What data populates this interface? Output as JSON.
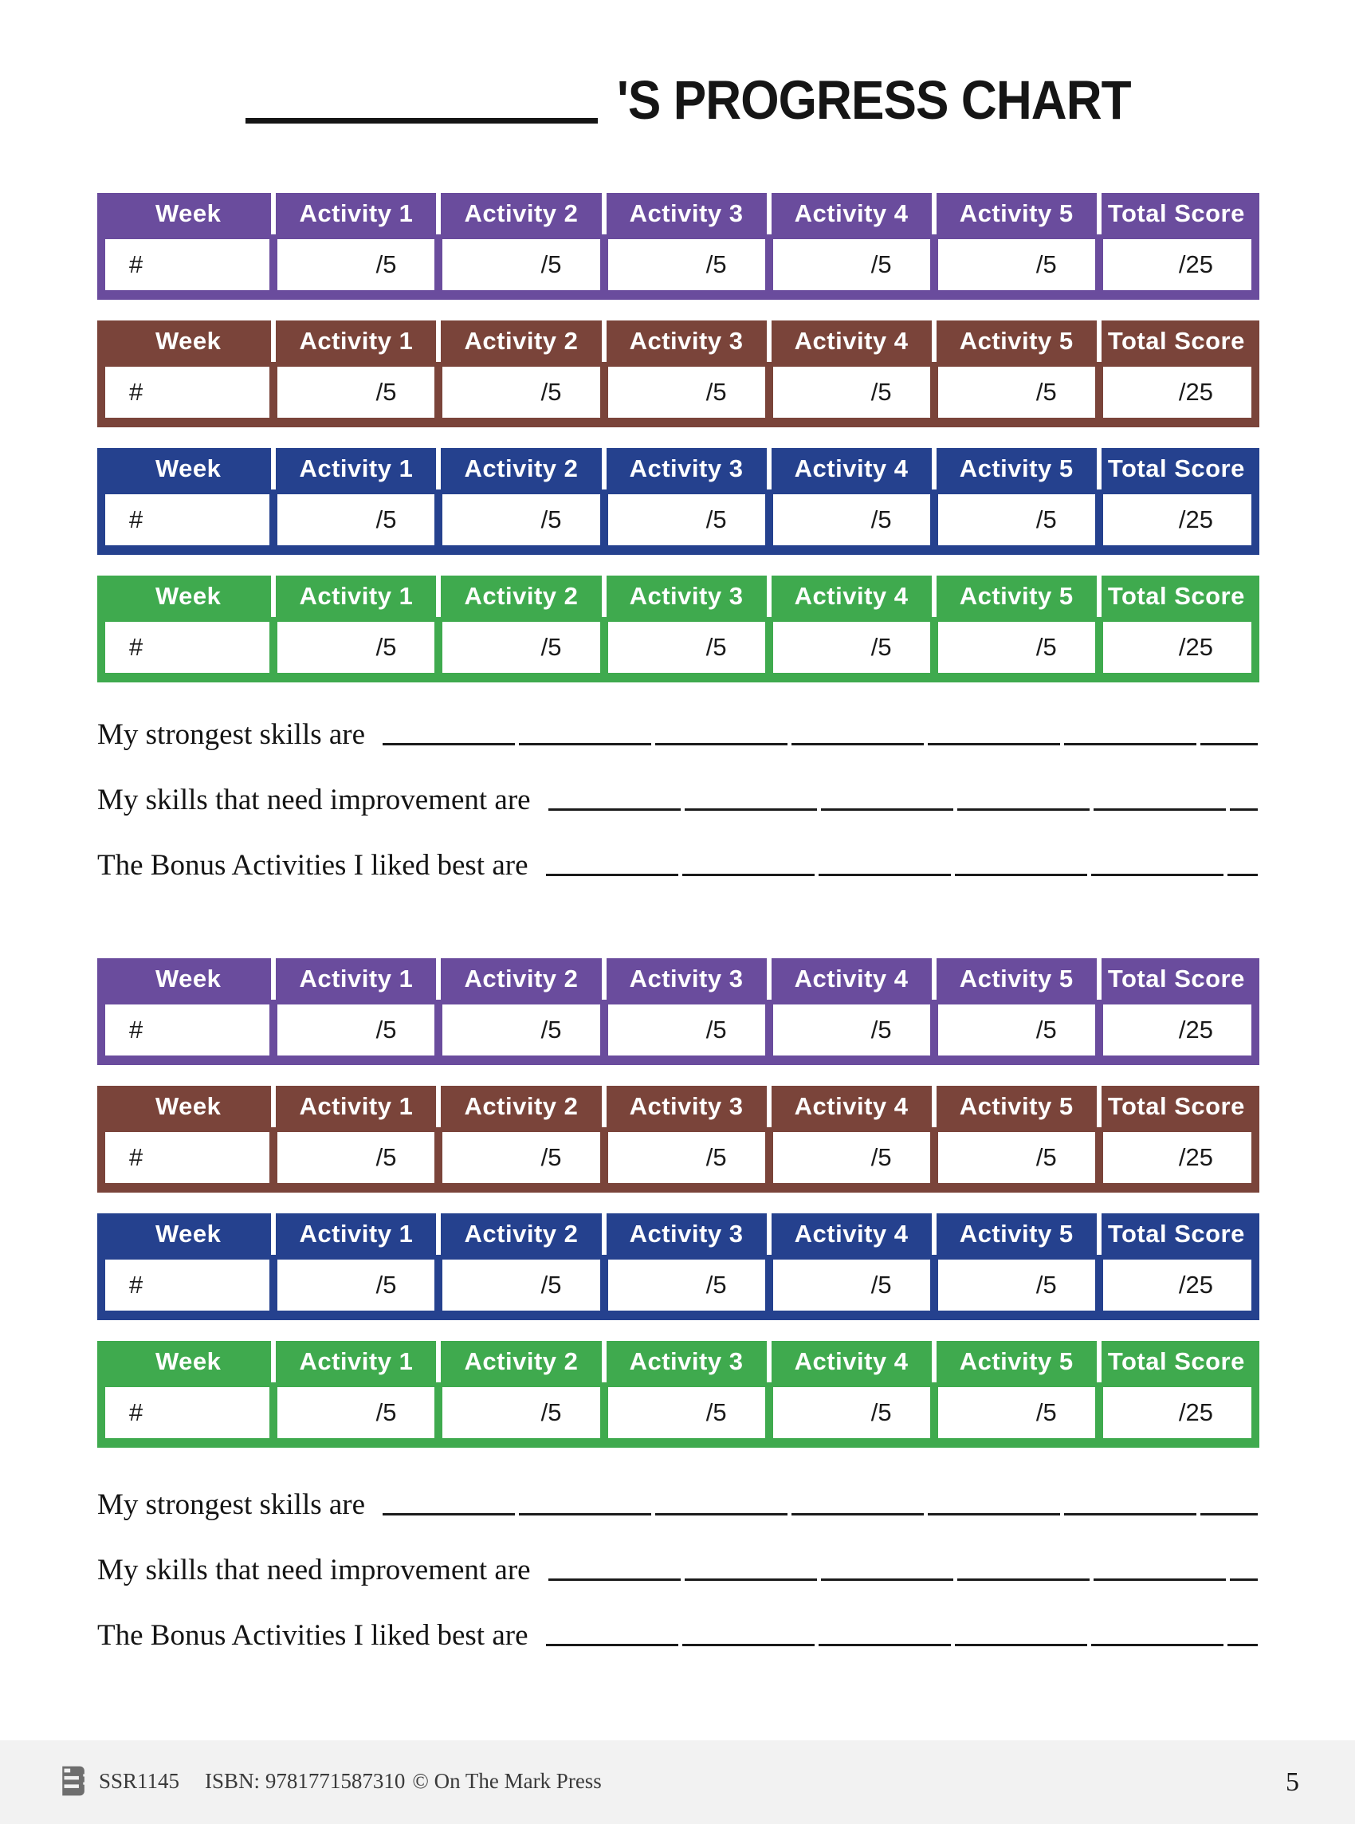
{
  "title": {
    "suffix": "'S PROGRESS CHART"
  },
  "colors": {
    "purple": "#6a4c9d",
    "brown": "#7a443a",
    "blue": "#25418e",
    "green": "#3faa4e"
  },
  "table": {
    "headers": [
      "Week",
      "Activity 1",
      "Activity 2",
      "Activity 3",
      "Activity 4",
      "Activity 5",
      "Total Score"
    ],
    "row_values": [
      "#",
      "/5",
      "/5",
      "/5",
      "/5",
      "/5",
      "/25"
    ]
  },
  "sections": [
    {
      "table_colors": [
        "purple",
        "brown",
        "blue",
        "green"
      ],
      "prompts": [
        "My strongest skills are",
        "My skills that need improvement are",
        "The Bonus Activities I liked best are"
      ]
    },
    {
      "table_colors": [
        "purple",
        "brown",
        "blue",
        "green"
      ],
      "prompts": [
        "My strongest skills are",
        "My skills that need improvement are",
        "The Bonus Activities I liked best are"
      ]
    }
  ],
  "footer": {
    "code": "SSR1145",
    "isbn": "ISBN: 9781771587310",
    "copyright": "© On The Mark Press",
    "page_number": "5"
  }
}
